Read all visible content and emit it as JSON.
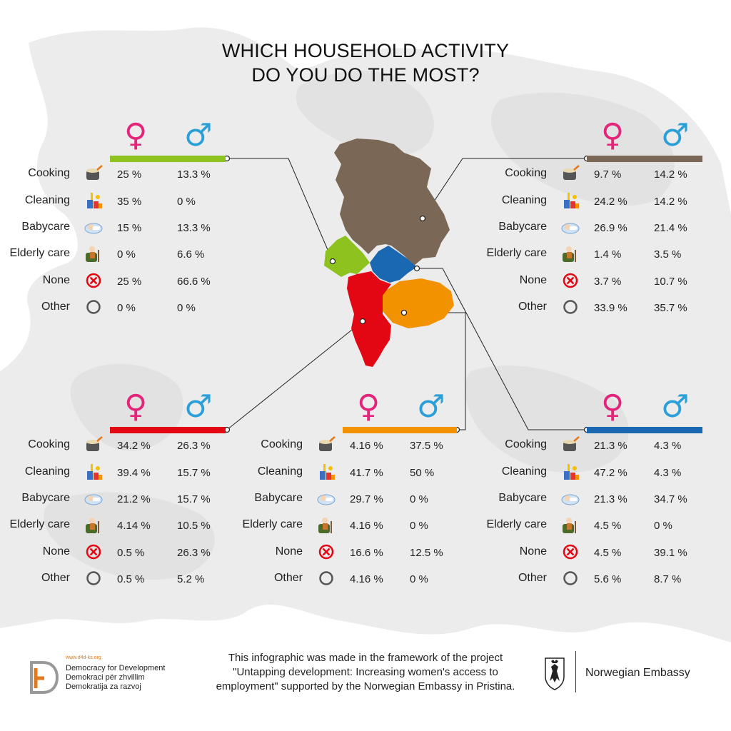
{
  "title": {
    "line1": "WHICH HOUSEHOLD ACTIVITY",
    "line2": "DO YOU DO THE MOST?"
  },
  "legend": {
    "female_symbol": "♀",
    "male_symbol": "♂"
  },
  "activities": [
    "Cooking",
    "Cleaning",
    "Babycare",
    "Elderly care",
    "None",
    "Other"
  ],
  "activity_icons": [
    "cooking-pot-icon",
    "cleaning-supplies-icon",
    "baby-icon",
    "elderly-person-icon",
    "none-cross-icon",
    "other-circle-icon"
  ],
  "colors": {
    "female": "#e4237a",
    "male": "#2b9fd8",
    "kosovo": "#8dc21f",
    "serbia": "#7b6755",
    "albania": "#e30613",
    "north_macedonia": "#f39200",
    "montenegro": "#1b68b2"
  },
  "chart_data": [
    {
      "type": "table",
      "region_color": "#8dc21f",
      "categories": [
        "Cooking",
        "Cleaning",
        "Babycare",
        "Elderly care",
        "None",
        "Other"
      ],
      "female": [
        "25 %",
        "35 %",
        "15 %",
        "0 %",
        "25 %",
        "0 %"
      ],
      "male": [
        "13.3 %",
        "0 %",
        "13.3 %",
        "6.6 %",
        "66.6 %",
        "0 %"
      ]
    },
    {
      "type": "table",
      "region_color": "#7b6755",
      "categories": [
        "Cooking",
        "Cleaning",
        "Babycare",
        "Elderly care",
        "None",
        "Other"
      ],
      "female": [
        "9.7 %",
        "24.2 %",
        "26.9 %",
        "1.4 %",
        "3.7 %",
        "33.9 %"
      ],
      "male": [
        "14.2 %",
        "14.2 %",
        "21.4 %",
        "3.5 %",
        "10.7 %",
        "35.7 %"
      ]
    },
    {
      "type": "table",
      "region_color": "#e30613",
      "categories": [
        "Cooking",
        "Cleaning",
        "Babycare",
        "Elderly care",
        "None",
        "Other"
      ],
      "female": [
        "34.2 %",
        "39.4 %",
        "21.2 %",
        "4.14 %",
        "0.5 %",
        "0.5 %"
      ],
      "male": [
        "26.3 %",
        "15.7 %",
        "15.7 %",
        "10.5 %",
        "26.3 %",
        "5.2 %"
      ]
    },
    {
      "type": "table",
      "region_color": "#f39200",
      "categories": [
        "Cooking",
        "Cleaning",
        "Babycare",
        "Elderly care",
        "None",
        "Other"
      ],
      "female": [
        "4.16 %",
        "41.7 %",
        "29.7 %",
        "4.16 %",
        "16.6 %",
        "4.16 %"
      ],
      "male": [
        "37.5 %",
        "50 %",
        "0 %",
        "0 %",
        "12.5 %",
        "0 %"
      ]
    },
    {
      "type": "table",
      "region_color": "#1b68b2",
      "categories": [
        "Cooking",
        "Cleaning",
        "Babycare",
        "Elderly care",
        "None",
        "Other"
      ],
      "female": [
        "21.3 %",
        "47.2 %",
        "21.3 %",
        "4.5 %",
        "4.5 %",
        "5.6 %"
      ],
      "male": [
        "4.3 %",
        "4.3 %",
        "34.7 %",
        "0 %",
        "39.1 %",
        "8.7 %"
      ]
    }
  ],
  "footer": {
    "text_line1": "This infographic was made in the framework of the project",
    "text_line2": "\"Untapping development: Increasing women's access to",
    "text_line3": "employment\" supported by the Norwegian Embassy in Pristina.",
    "logo_url": "www.d4d-ks.org",
    "logo_line1": "Democracy for Development",
    "logo_line2": "Demokraci për zhvillim",
    "logo_line3": "Demokratija za razvoj",
    "embassy": "Norwegian Embassy"
  }
}
